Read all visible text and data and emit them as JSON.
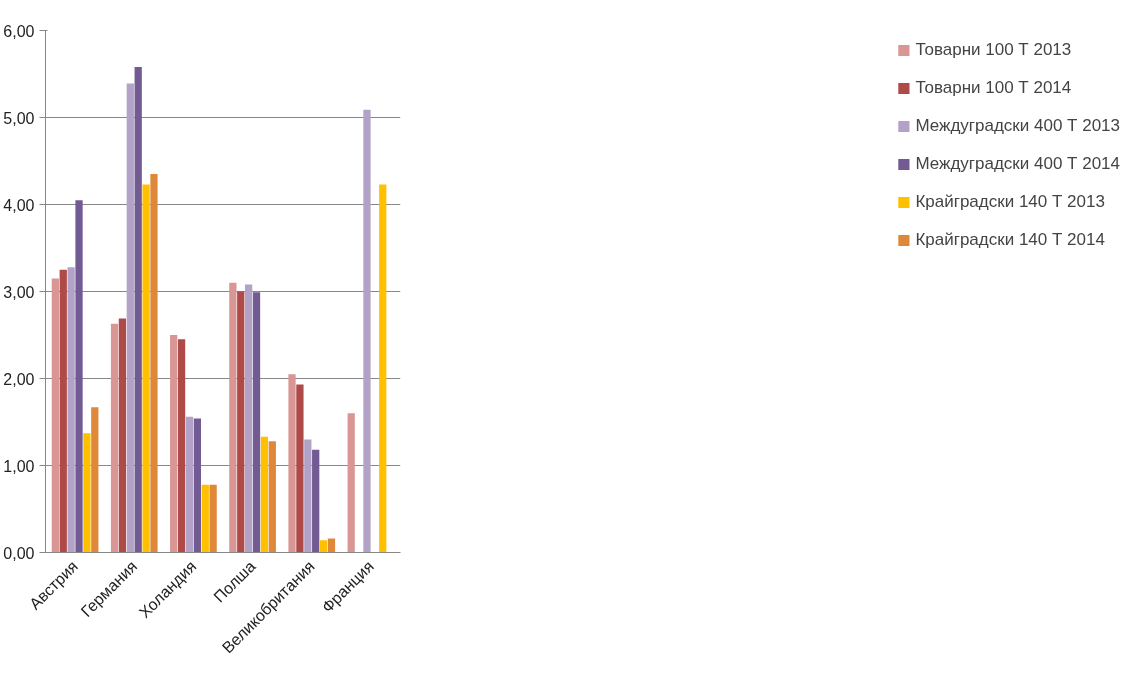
{
  "chart_data": {
    "type": "bar",
    "categories": [
      "Австрия",
      "Германия",
      "Холандия",
      "Полша",
      "Великобритания",
      "Франция"
    ],
    "series": [
      {
        "name": "Товарни 100 Т 2013",
        "color": "#d99694",
        "values": [
          3.15,
          2.63,
          2.5,
          3.1,
          2.05,
          1.6
        ]
      },
      {
        "name": "Товарни 100 Т 2014",
        "color": "#ae4a47",
        "values": [
          3.25,
          2.69,
          2.45,
          3.0,
          1.93,
          null
        ]
      },
      {
        "name": "Междуградски 400 Т 2013",
        "color": "#b3a2c7",
        "values": [
          3.28,
          5.39,
          1.56,
          3.08,
          1.3,
          5.09
        ]
      },
      {
        "name": "Междуградски 400 Т 2014",
        "color": "#725a93",
        "values": [
          4.05,
          5.58,
          1.54,
          2.99,
          1.18,
          null
        ]
      },
      {
        "name": "Крайградски 140 Т 2013",
        "color": "#ffc000",
        "values": [
          1.37,
          4.23,
          0.78,
          1.33,
          0.14,
          4.23
        ]
      },
      {
        "name": "Крайградски 140 Т 2014",
        "color": "#e0883a",
        "values": [
          1.67,
          4.35,
          0.78,
          1.28,
          0.16,
          null
        ]
      }
    ],
    "ylim": [
      0,
      6
    ],
    "yticks": [
      {
        "value": 0,
        "label": "0,00"
      },
      {
        "value": 1,
        "label": "1,00"
      },
      {
        "value": 2,
        "label": "2,00"
      },
      {
        "value": 3,
        "label": "3,00"
      },
      {
        "value": 4,
        "label": "4,00"
      },
      {
        "value": 5,
        "label": "5,00"
      },
      {
        "value": 6,
        "label": "6,00"
      }
    ],
    "grid": "y",
    "legend": "right"
  }
}
